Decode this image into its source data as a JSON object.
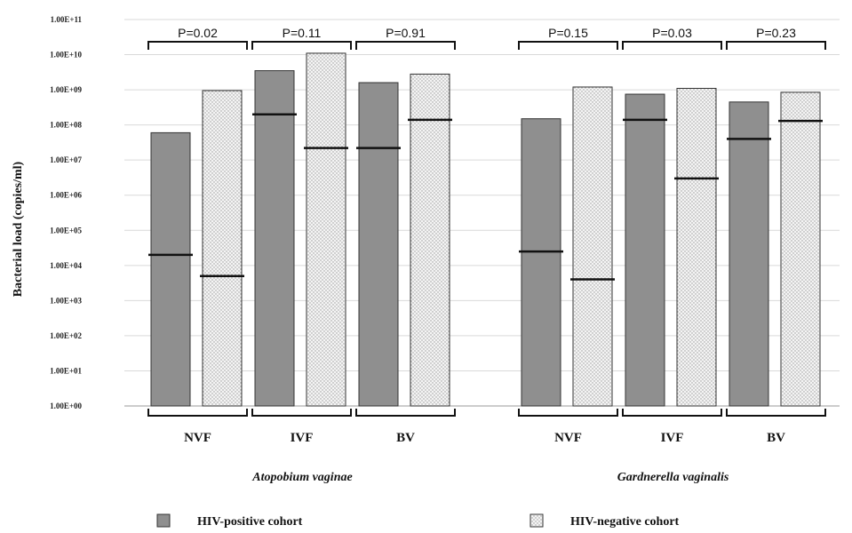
{
  "chart_data": {
    "type": "bar",
    "ylabel": "Bacterial load (copies/ml)",
    "yscale": "log",
    "ylim": [
      1,
      100000000000
    ],
    "y_ticks": [
      "1.00E+00",
      "1.00E+01",
      "1.00E+02",
      "1.00E+03",
      "1.00E+04",
      "1.00E+05",
      "1.00E+06",
      "1.00E+07",
      "1.00E+08",
      "1.00E+09",
      "1.00E+10",
      "1.00E+11"
    ],
    "grid": true,
    "colors": {
      "hiv_positive": "#8f8f8f",
      "hiv_negative": "#ececec",
      "median_line": "#111111"
    },
    "legend": [
      {
        "label": "HIV-positive cohort",
        "key": "hiv_positive",
        "pattern": "solid"
      },
      {
        "label": "HIV-negative cohort",
        "key": "hiv_negative",
        "pattern": "dotted"
      }
    ],
    "legend_position": "bottom",
    "groups": [
      {
        "species": "Atopobium vaginae",
        "categories": [
          "NVF",
          "IVF",
          "BV"
        ],
        "p_values": [
          "P=0.02",
          "P=0.11",
          "P=0.91"
        ],
        "series": [
          {
            "name": "HIV-positive cohort",
            "max": [
              60000000,
              3500000000,
              1600000000
            ],
            "median": [
              20000,
              200000000,
              22000000
            ]
          },
          {
            "name": "HIV-negative cohort",
            "max": [
              950000000,
              11000000000,
              2800000000
            ],
            "median": [
              5000,
              22000000,
              140000000
            ]
          }
        ]
      },
      {
        "species": "Gardnerella vaginalis",
        "categories": [
          "NVF",
          "IVF",
          "BV"
        ],
        "p_values": [
          "P=0.15",
          "P=0.03",
          "P=0.23"
        ],
        "series": [
          {
            "name": "HIV-positive cohort",
            "max": [
              150000000,
              750000000,
              450000000
            ],
            "median": [
              25000,
              140000000,
              40000000
            ]
          },
          {
            "name": "HIV-negative cohort",
            "max": [
              1200000000,
              1100000000,
              850000000
            ],
            "median": [
              4000,
              3000000,
              130000000
            ]
          }
        ]
      }
    ]
  }
}
